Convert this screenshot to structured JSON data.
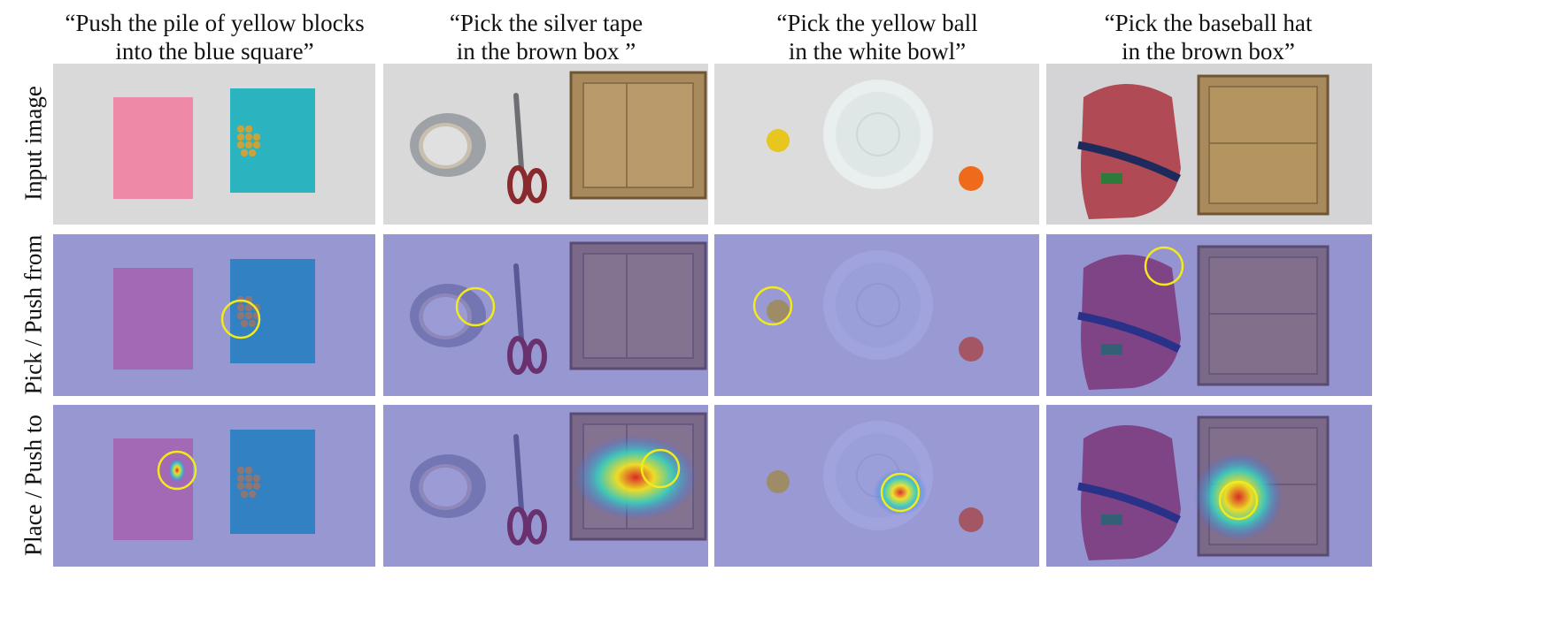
{
  "columns": [
    {
      "caption": "“Push the pile of yellow blocks\ninto the blue square”"
    },
    {
      "caption": "“Pick the silver tape\nin the brown box ”"
    },
    {
      "caption": "“Pick the yellow ball\nin the white bowl”"
    },
    {
      "caption": "“Pick the baseball hat\nin the brown box”"
    }
  ],
  "rows": [
    {
      "label": "Input image"
    },
    {
      "label": "Pick / Push from"
    },
    {
      "label": "Place / Push to"
    }
  ],
  "colors": {
    "overlay": "#3c3cc8",
    "circle": "#f2ea1a",
    "pink_square": "#ee8aa8",
    "blue_square": "#2bb3bf",
    "blocks": "#c9a33c",
    "cardboard": "#a98a5c",
    "tape": "#9ea1a6",
    "scissors": "#8a2a2e",
    "yellow_ball": "#e6c61f",
    "orange_ball": "#f06a1c",
    "hat": "#b04a55",
    "background": "#d8d8d8"
  }
}
